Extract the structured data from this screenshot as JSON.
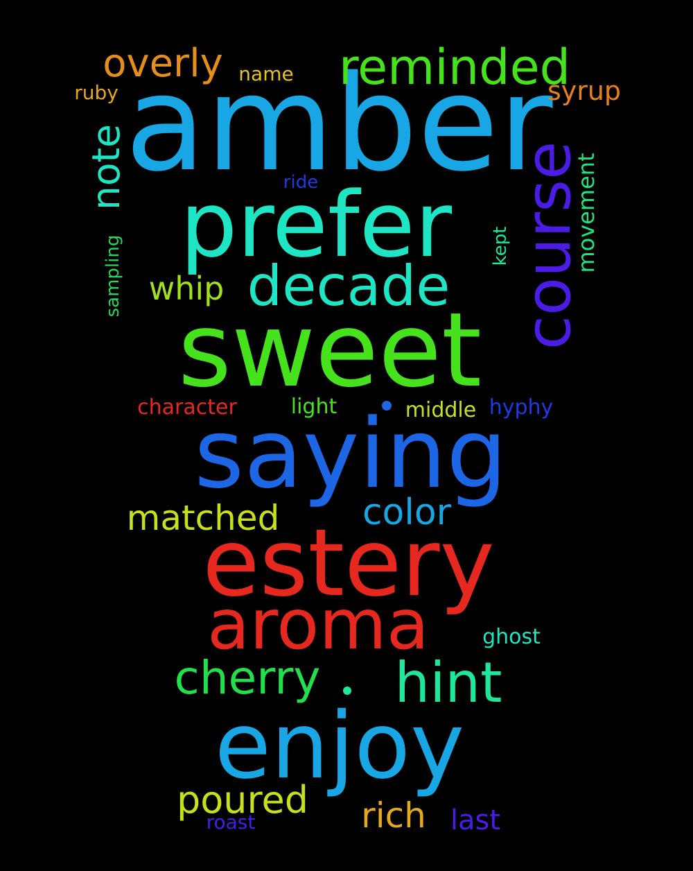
{
  "words": [
    {
      "text": "amber",
      "color": "#18a6e4"
    },
    {
      "text": "sweet",
      "color": "#46e31c"
    },
    {
      "text": "saying",
      "color": "#1d66e6"
    },
    {
      "text": "estery",
      "color": "#e6281e"
    },
    {
      "text": "prefer",
      "color": "#1ee6c4"
    },
    {
      "text": "enjoy",
      "color": "#18a6e4"
    },
    {
      "text": "aroma",
      "color": "#e6281e"
    },
    {
      "text": "course",
      "color": "#4a1ce6"
    },
    {
      "text": "decade",
      "color": "#1ee6c4"
    },
    {
      "text": "reminded",
      "color": "#46e31c"
    },
    {
      "text": "hint",
      "color": "#1ee69a"
    },
    {
      "text": "cherry",
      "color": "#22e04a"
    },
    {
      "text": "overly",
      "color": "#e68e1c"
    },
    {
      "text": "note",
      "color": "#1ee6c4"
    },
    {
      "text": "color",
      "color": "#18a6e4"
    },
    {
      "text": "matched",
      "color": "#c8e01c"
    },
    {
      "text": "poured",
      "color": "#c8e01c"
    },
    {
      "text": "rich",
      "color": "#e6a81c"
    },
    {
      "text": "whip",
      "color": "#a0e01c"
    },
    {
      "text": "syrup",
      "color": "#e6801c"
    },
    {
      "text": "movement",
      "color": "#1ee67a"
    },
    {
      "text": "last",
      "color": "#4a1ce6"
    },
    {
      "text": "character",
      "color": "#e6281e"
    },
    {
      "text": "light",
      "color": "#46e31c"
    },
    {
      "text": "middle",
      "color": "#c8e01c"
    },
    {
      "text": "hyphy",
      "color": "#1d3ae6"
    },
    {
      "text": "sampling",
      "color": "#22d85a"
    },
    {
      "text": "ghost",
      "color": "#1ee6c4"
    },
    {
      "text": "ruby",
      "color": "#e6a81c"
    },
    {
      "text": "name",
      "color": "#e6c41c"
    },
    {
      "text": "kept",
      "color": "#1ee69a"
    },
    {
      "text": "ride",
      "color": "#1d3ae6"
    },
    {
      "text": "roast",
      "color": "#4a1ce6"
    }
  ],
  "dots": [
    {
      "color": "#1d66e6"
    },
    {
      "color": "#1ee69a"
    }
  ]
}
